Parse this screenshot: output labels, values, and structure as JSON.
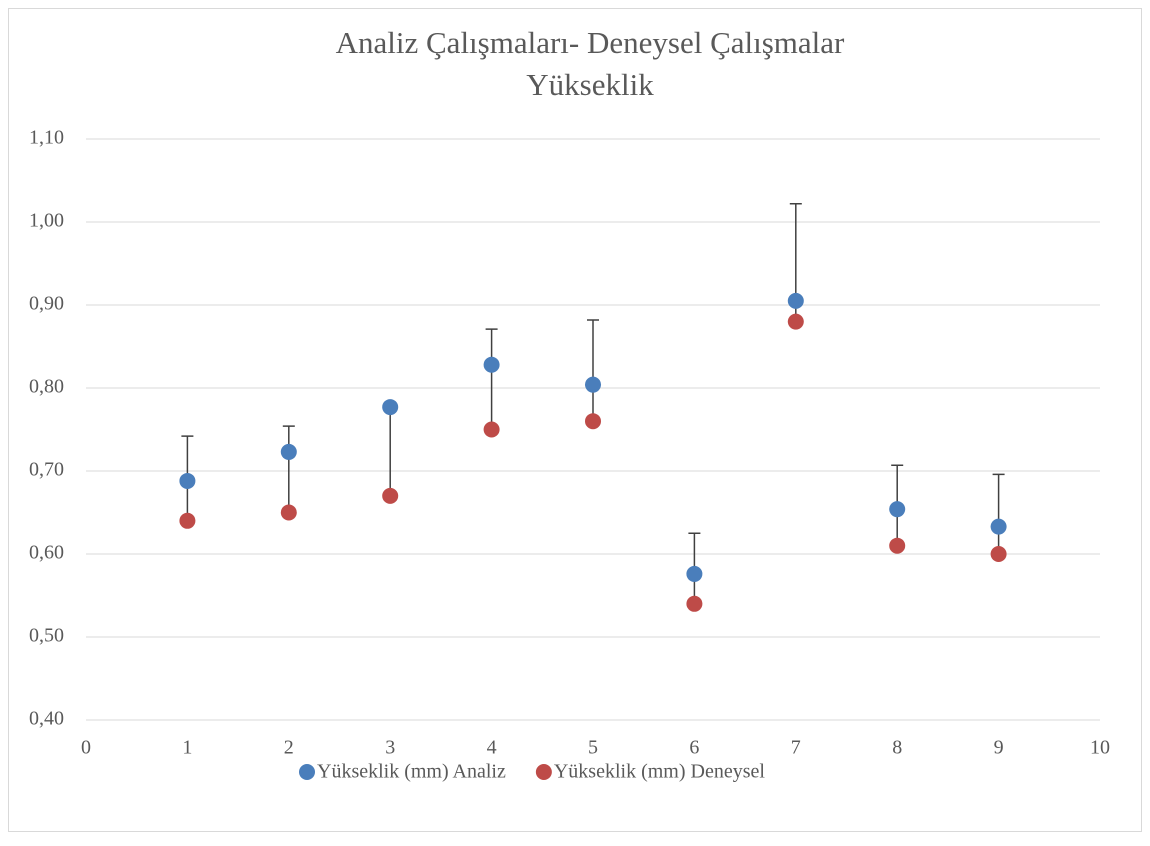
{
  "chart_data": {
    "type": "scatter",
    "title": [
      "Analiz Çalışmaları- Deneysel Çalışmalar",
      "Yükseklik"
    ],
    "x": [
      1,
      2,
      3,
      4,
      5,
      6,
      7,
      8,
      9
    ],
    "series": [
      {
        "name": "Yükseklik (mm) Analiz",
        "color": "#4a7ebb",
        "values": [
          0.688,
          0.723,
          0.777,
          0.828,
          0.804,
          0.576,
          0.905,
          0.654,
          0.633
        ]
      },
      {
        "name": "Yükseklik (mm) Deneysel",
        "color": "#be4b48",
        "values": [
          0.64,
          0.65,
          0.67,
          0.75,
          0.76,
          0.54,
          0.88,
          0.61,
          0.6
        ],
        "errors": [
          0.102,
          0.104,
          0.107,
          0.121,
          0.122,
          0.085,
          0.142,
          0.097,
          0.096
        ]
      }
    ],
    "xlim": [
      0,
      10
    ],
    "xticks": [
      0,
      1,
      2,
      3,
      4,
      5,
      6,
      7,
      8,
      9,
      10
    ],
    "ylim": [
      0.4,
      1.1
    ],
    "yticks": [
      {
        "value": 0.4,
        "label": "0,40"
      },
      {
        "value": 0.5,
        "label": "0,50"
      },
      {
        "value": 0.6,
        "label": "0,60"
      },
      {
        "value": 0.7,
        "label": "0,70"
      },
      {
        "value": 0.8,
        "label": "0,80"
      },
      {
        "value": 0.9,
        "label": "0,90"
      },
      {
        "value": 1.0,
        "label": "1,00"
      },
      {
        "value": 1.1,
        "label": "1,10"
      }
    ],
    "grid": true,
    "legend": "bottom"
  }
}
